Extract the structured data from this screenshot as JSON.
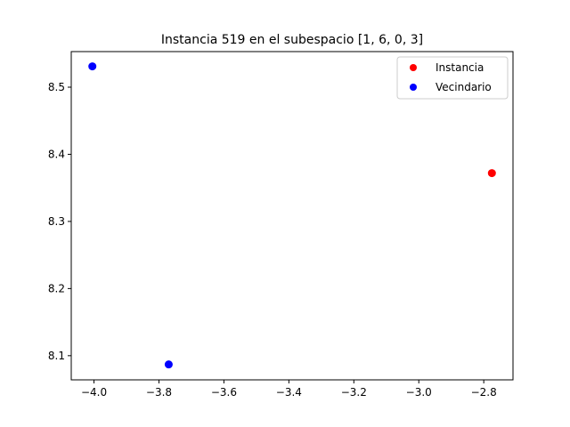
{
  "chart_data": {
    "type": "scatter",
    "title": "Instancia 519 en el subespacio [1, 6, 0, 3]",
    "xlabel": "",
    "ylabel": "",
    "xlim": [
      -4.07,
      -2.71
    ],
    "ylim": [
      8.064,
      8.553
    ],
    "xticks": [
      -4.0,
      -3.8,
      -3.6,
      -3.4,
      -3.2,
      -3.0,
      -2.8
    ],
    "xtick_labels": [
      "−4.0",
      "−3.8",
      "−3.6",
      "−3.4",
      "−3.2",
      "−3.0",
      "−2.8"
    ],
    "yticks": [
      8.1,
      8.2,
      8.3,
      8.4,
      8.5
    ],
    "ytick_labels": [
      "8.1",
      "8.2",
      "8.3",
      "8.4",
      "8.5"
    ],
    "grid": false,
    "legend_position": "top-right",
    "series": [
      {
        "name": "Instancia",
        "color": "#ff0000",
        "points": [
          [
            -2.775,
            8.372
          ]
        ]
      },
      {
        "name": "Vecindario",
        "color": "#0000ff",
        "points": [
          [
            -4.005,
            8.531
          ],
          [
            -3.77,
            8.087
          ]
        ]
      }
    ]
  }
}
